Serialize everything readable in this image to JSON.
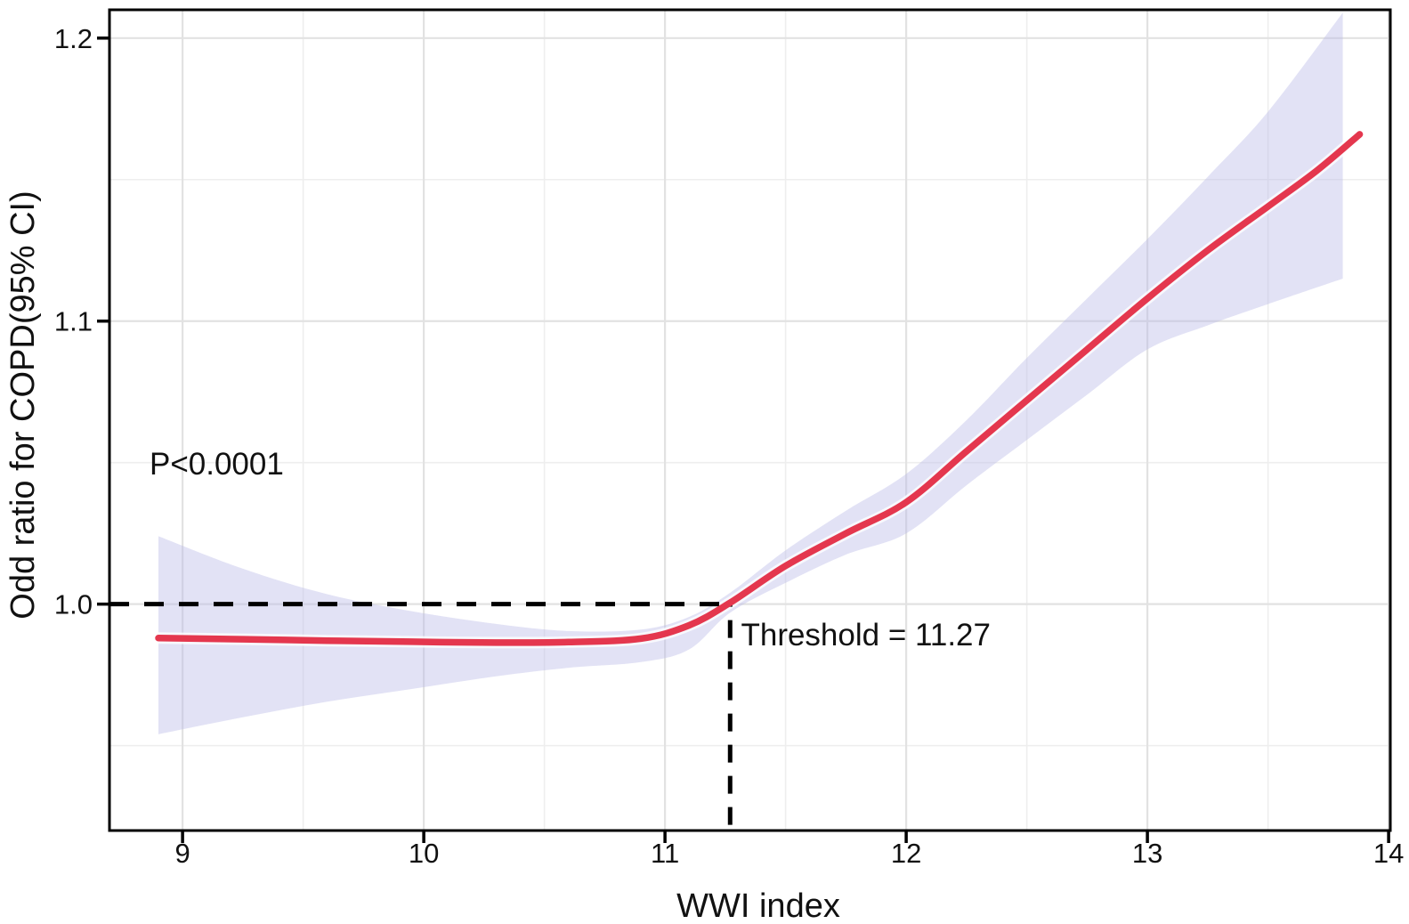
{
  "figure": {
    "background": "#ffffff",
    "panel_border_color": "#000000",
    "grid_major_color": "#e2e2e2",
    "grid_minor_color": "#eeeeee",
    "tick_color": "#000000",
    "text_color": "#111111",
    "dashed_line_color": "#000000"
  },
  "chart_data": {
    "type": "line",
    "title": "",
    "xlabel": "WWI index",
    "ylabel": "Odd ratio for COPD(95% CI)",
    "xlim": [
      8.697,
      14.007
    ],
    "ylim": [
      0.92,
      1.21
    ],
    "xticks": [
      9,
      10,
      11,
      12,
      13,
      14
    ],
    "xtick_labels": [
      "9",
      "10",
      "11",
      "12",
      "13",
      "14"
    ],
    "yticks": [
      1.0,
      1.1,
      1.2
    ],
    "ytick_labels": [
      "1.0",
      "1.1",
      "1.2"
    ],
    "x_minor_gridlines": [
      9.5,
      10.5,
      11.5,
      12.5,
      13.5
    ],
    "y_minor_gridlines": [
      0.95,
      1.05,
      1.15
    ],
    "grid": true,
    "legend": "none",
    "annotations": {
      "p_value": "P<0.0001",
      "p_value_pos": [
        8.863,
        1.0458
      ],
      "threshold_label": "Threshold = 11.27",
      "threshold_label_pos": [
        11.315,
        0.9855
      ],
      "threshold_x": 11.27,
      "reference_or": 1.0
    },
    "series": [
      {
        "name": "OR",
        "type": "line",
        "color": "#e4374e",
        "x": [
          8.9,
          9.25,
          9.6,
          9.95,
          10.3,
          10.6,
          10.9,
          11.1,
          11.27,
          11.5,
          11.75,
          12.0,
          12.25,
          12.5,
          12.75,
          13.0,
          13.25,
          13.5,
          13.7,
          13.88
        ],
        "y": [
          0.988,
          0.9876,
          0.9871,
          0.9867,
          0.9864,
          0.9866,
          0.9878,
          0.9925,
          1.0005,
          1.0135,
          1.025,
          1.036,
          1.054,
          1.072,
          1.09,
          1.108,
          1.125,
          1.1405,
          1.153,
          1.166
        ]
      },
      {
        "name": "95% CI",
        "type": "band",
        "fill": "#b9b9e8",
        "fill_opacity": 0.42,
        "x": [
          8.9,
          9.25,
          9.6,
          9.95,
          10.3,
          10.6,
          10.9,
          11.1,
          11.27,
          11.5,
          11.75,
          12.0,
          12.25,
          12.5,
          12.75,
          13.0,
          13.25,
          13.5,
          13.81
        ],
        "lower": [
          0.954,
          0.96,
          0.9655,
          0.97,
          0.9745,
          0.9775,
          0.9795,
          0.984,
          0.997,
          1.0075,
          1.0175,
          1.025,
          1.042,
          1.058,
          1.074,
          1.09,
          1.0985,
          1.106,
          1.115
        ],
        "upper": [
          1.024,
          1.0125,
          1.0035,
          0.9975,
          0.993,
          0.9905,
          0.991,
          0.9955,
          1.004,
          1.019,
          1.033,
          1.046,
          1.065,
          1.087,
          1.108,
          1.129,
          1.151,
          1.174,
          1.209
        ]
      }
    ]
  }
}
